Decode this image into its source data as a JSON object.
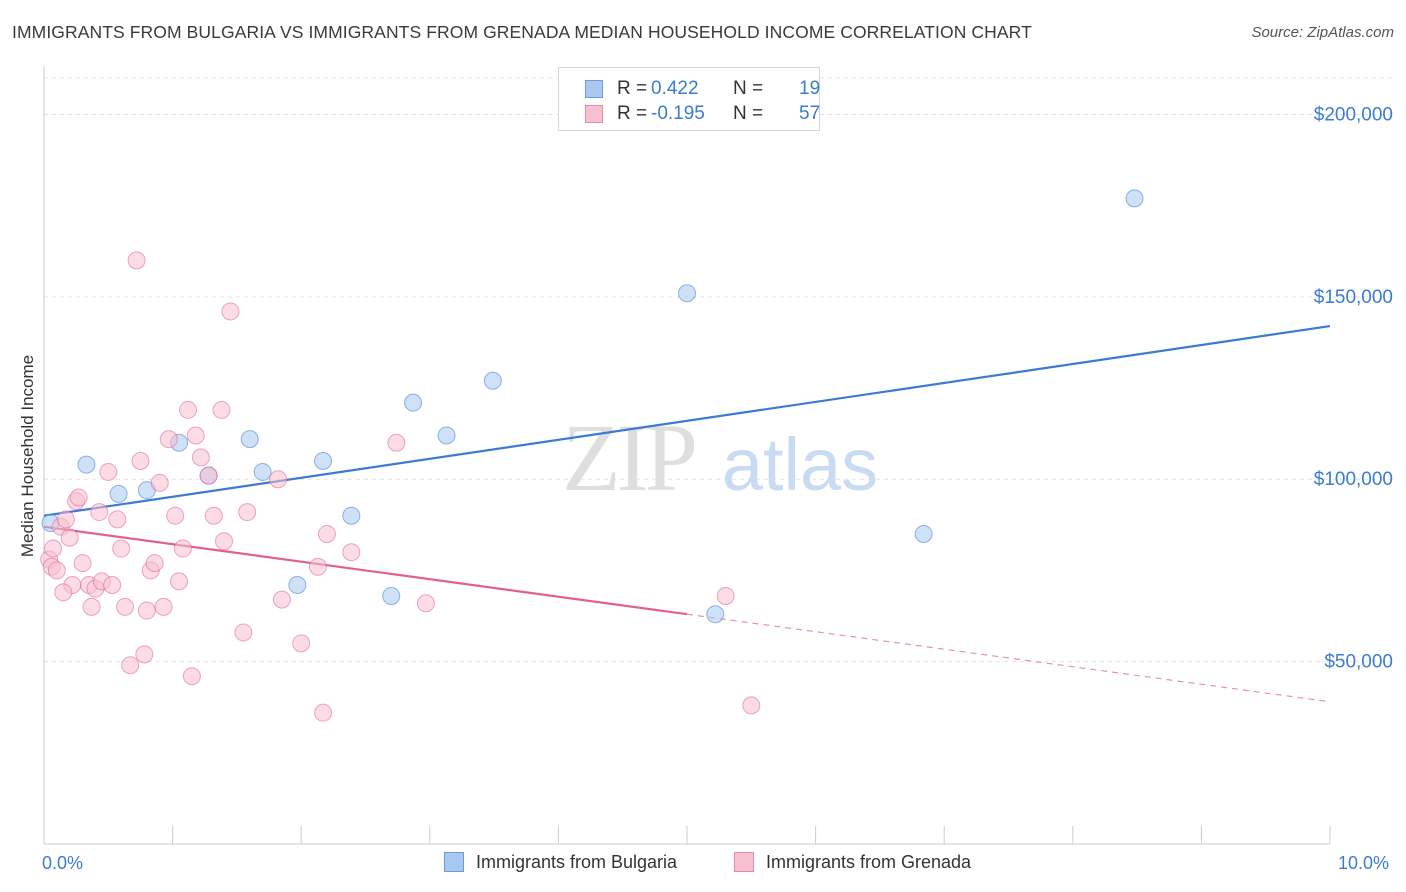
{
  "title": "IMMIGRANTS FROM BULGARIA VS IMMIGRANTS FROM GRENADA MEDIAN HOUSEHOLD INCOME CORRELATION CHART",
  "source": "Source: ZipAtlas.com",
  "watermark": {
    "zip": "ZIP",
    "atlas": "atlas"
  },
  "legend": {
    "rows": [
      {
        "r_label": "R =",
        "r_value": "0.422",
        "n_label": "N =",
        "n_value": "19",
        "color": "#a8c8f0",
        "border": "#6a9ddd"
      },
      {
        "r_label": "R =",
        "r_value": "-0.195",
        "n_label": "N =",
        "n_value": "57",
        "color": "#f7bfd0",
        "border": "#e68aa8"
      }
    ]
  },
  "bottom_legend": [
    {
      "label": "Immigrants from Bulgaria",
      "color": "#a8c8f0",
      "border": "#6a9ddd"
    },
    {
      "label": "Immigrants from Grenada",
      "color": "#f7bfd0",
      "border": "#e68aa8"
    }
  ],
  "chart_data": {
    "type": "scatter",
    "ylabel": "Median Household Income",
    "xlim": [
      0,
      10
    ],
    "ylim": [
      0,
      210000
    ],
    "x_tick_labels": [
      "0.0%",
      "10.0%"
    ],
    "y_ticks": [
      {
        "value": 50000,
        "label": "$50,000"
      },
      {
        "value": 100000,
        "label": "$100,000"
      },
      {
        "value": 150000,
        "label": "$150,000"
      },
      {
        "value": 200000,
        "label": "$200,000"
      }
    ],
    "grid": true,
    "series": [
      {
        "name": "Immigrants from Bulgaria",
        "color": "#3b7bd4",
        "fill": "#a8c8f0",
        "points": [
          [
            0.05,
            88000
          ],
          [
            0.33,
            104000
          ],
          [
            0.58,
            96000
          ],
          [
            0.8,
            97000
          ],
          [
            1.05,
            110000
          ],
          [
            1.28,
            101000
          ],
          [
            1.6,
            111000
          ],
          [
            1.7,
            102000
          ],
          [
            1.97,
            71000
          ],
          [
            2.17,
            105000
          ],
          [
            2.39,
            90000
          ],
          [
            2.7,
            68000
          ],
          [
            2.87,
            121000
          ],
          [
            3.13,
            112000
          ],
          [
            3.49,
            127000
          ],
          [
            5.0,
            151000
          ],
          [
            5.22,
            63000
          ],
          [
            6.84,
            85000
          ],
          [
            8.48,
            177000
          ]
        ],
        "trend": {
          "x": [
            0,
            10
          ],
          "y": [
            90000,
            142000
          ],
          "dashed_from": null
        }
      },
      {
        "name": "Immigrants from Grenada",
        "color": "#e06090",
        "fill": "#f7bfd0",
        "points": [
          [
            0.04,
            78000
          ],
          [
            0.06,
            76000
          ],
          [
            0.07,
            81000
          ],
          [
            0.1,
            75000
          ],
          [
            0.13,
            87000
          ],
          [
            0.17,
            89000
          ],
          [
            0.2,
            84000
          ],
          [
            0.22,
            71000
          ],
          [
            0.25,
            94000
          ],
          [
            0.27,
            95000
          ],
          [
            0.3,
            77000
          ],
          [
            0.35,
            71000
          ],
          [
            0.37,
            65000
          ],
          [
            0.4,
            70000
          ],
          [
            0.43,
            91000
          ],
          [
            0.45,
            72000
          ],
          [
            0.5,
            102000
          ],
          [
            0.53,
            71000
          ],
          [
            0.57,
            89000
          ],
          [
            0.6,
            81000
          ],
          [
            0.63,
            65000
          ],
          [
            0.67,
            49000
          ],
          [
            0.72,
            160000
          ],
          [
            0.75,
            105000
          ],
          [
            0.78,
            52000
          ],
          [
            0.8,
            64000
          ],
          [
            0.83,
            75000
          ],
          [
            0.86,
            77000
          ],
          [
            0.9,
            99000
          ],
          [
            0.93,
            65000
          ],
          [
            0.97,
            111000
          ],
          [
            1.02,
            90000
          ],
          [
            1.05,
            72000
          ],
          [
            1.08,
            81000
          ],
          [
            1.12,
            119000
          ],
          [
            1.15,
            46000
          ],
          [
            1.18,
            112000
          ],
          [
            1.22,
            106000
          ],
          [
            1.28,
            101000
          ],
          [
            1.32,
            90000
          ],
          [
            1.38,
            119000
          ],
          [
            1.4,
            83000
          ],
          [
            1.45,
            146000
          ],
          [
            1.55,
            58000
          ],
          [
            1.58,
            91000
          ],
          [
            1.82,
            100000
          ],
          [
            1.85,
            67000
          ],
          [
            2.0,
            55000
          ],
          [
            2.13,
            76000
          ],
          [
            2.17,
            36000
          ],
          [
            2.2,
            85000
          ],
          [
            2.39,
            80000
          ],
          [
            2.74,
            110000
          ],
          [
            2.97,
            66000
          ],
          [
            5.3,
            68000
          ],
          [
            5.5,
            38000
          ],
          [
            0.15,
            69000
          ]
        ],
        "trend": {
          "x": [
            0,
            10
          ],
          "y": [
            87000,
            39000
          ],
          "dashed_from": 5.0
        }
      }
    ]
  }
}
